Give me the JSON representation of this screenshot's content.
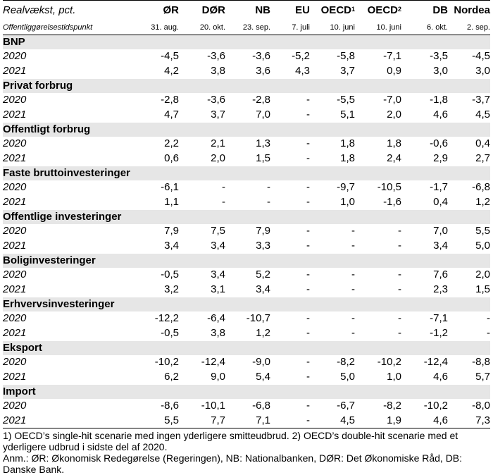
{
  "header": {
    "title": "Realvækst, pct.",
    "subtitle": "Offentliggørelsestidspunkt",
    "columns": [
      {
        "name": "ØR",
        "sup": "",
        "date": "31. aug."
      },
      {
        "name": "DØR",
        "sup": "",
        "date": "20. okt."
      },
      {
        "name": "NB",
        "sup": "",
        "date": "23. sep."
      },
      {
        "name": "EU",
        "sup": "",
        "date": "7. juli"
      },
      {
        "name": "OECD",
        "sup": "1",
        "date": "10. juni"
      },
      {
        "name": "OECD",
        "sup": "2",
        "date": "10. juni"
      },
      {
        "name": "DB",
        "sup": "",
        "date": "6. okt."
      },
      {
        "name": "Nordea",
        "sup": "",
        "date": "2. sep."
      }
    ]
  },
  "sections": [
    {
      "title": "BNP",
      "rows": [
        {
          "year": "2020",
          "values": [
            "-4,5",
            "-3,6",
            "-3,6",
            "-5,2",
            "-5,8",
            "-7,1",
            "-3,5",
            "-4,5"
          ]
        },
        {
          "year": "2021",
          "values": [
            "4,2",
            "3,8",
            "3,6",
            "4,3",
            "3,7",
            "0,9",
            "3,0",
            "3,0"
          ]
        }
      ]
    },
    {
      "title": "Privat forbrug",
      "rows": [
        {
          "year": "2020",
          "values": [
            "-2,8",
            "-3,6",
            "-2,8",
            "-",
            "-5,5",
            "-7,0",
            "-1,8",
            "-3,7"
          ]
        },
        {
          "year": "2021",
          "values": [
            "4,7",
            "3,7",
            "7,0",
            "-",
            "5,1",
            "2,0",
            "4,6",
            "4,5"
          ]
        }
      ]
    },
    {
      "title": "Offentligt forbrug",
      "rows": [
        {
          "year": "2020",
          "values": [
            "2,2",
            "2,1",
            "1,3",
            "-",
            "1,8",
            "1,8",
            "-0,6",
            "0,4"
          ]
        },
        {
          "year": "2021",
          "values": [
            "0,6",
            "2,0",
            "1,5",
            "-",
            "1,8",
            "2,4",
            "2,9",
            "2,7"
          ]
        }
      ]
    },
    {
      "title": "Faste bruttoinvesteringer",
      "rows": [
        {
          "year": "2020",
          "values": [
            "-6,1",
            "-",
            "-",
            "-",
            "-9,7",
            "-10,5",
            "-1,7",
            "-6,8"
          ]
        },
        {
          "year": "2021",
          "values": [
            "1,1",
            "-",
            "-",
            "-",
            "1,0",
            "-1,6",
            "0,4",
            "1,2"
          ]
        }
      ]
    },
    {
      "title": "Offentlige investeringer",
      "rows": [
        {
          "year": "2020",
          "values": [
            "7,9",
            "7,5",
            "7,9",
            "-",
            "-",
            "-",
            "7,0",
            "5,5"
          ]
        },
        {
          "year": "2021",
          "values": [
            "3,4",
            "3,4",
            "3,3",
            "-",
            "-",
            "-",
            "3,4",
            "5,0"
          ]
        }
      ]
    },
    {
      "title": "Boliginvesteringer",
      "rows": [
        {
          "year": "2020",
          "values": [
            "-0,5",
            "3,4",
            "5,2",
            "-",
            "-",
            "-",
            "7,6",
            "2,0"
          ]
        },
        {
          "year": "2021",
          "values": [
            "3,2",
            "3,1",
            "3,4",
            "-",
            "-",
            "-",
            "2,3",
            "1,5"
          ]
        }
      ]
    },
    {
      "title": "Erhvervsinvesteringer",
      "rows": [
        {
          "year": "2020",
          "values": [
            "-12,2",
            "-6,4",
            "-10,7",
            "-",
            "-",
            "-",
            "-7,1",
            "-"
          ]
        },
        {
          "year": "2021",
          "values": [
            "-0,5",
            "3,8",
            "1,2",
            "-",
            "-",
            "-",
            "-1,2",
            "-"
          ]
        }
      ]
    },
    {
      "title": "Eksport",
      "rows": [
        {
          "year": "2020",
          "values": [
            "-10,2",
            "-12,4",
            "-9,0",
            "-",
            "-8,2",
            "-10,2",
            "-12,4",
            "-8,8"
          ]
        },
        {
          "year": "2021",
          "values": [
            "6,2",
            "9,0",
            "5,4",
            "-",
            "5,0",
            "1,0",
            "4,6",
            "5,7"
          ]
        }
      ]
    },
    {
      "title": "Import",
      "rows": [
        {
          "year": "2020",
          "values": [
            "-8,6",
            "-10,1",
            "-6,8",
            "-",
            "-6,7",
            "-8,2",
            "-10,2",
            "-8,0"
          ]
        },
        {
          "year": "2021",
          "values": [
            "5,5",
            "7,7",
            "7,1",
            "-",
            "4,5",
            "1,9",
            "4,6",
            "7,3"
          ]
        }
      ]
    }
  ],
  "notes": {
    "footnote": "1) OECD’s single-hit scenarie med ingen yderligere smitteudbrud. 2) OECD’s double-hit scenarie med et yderligere udbrud i sidste del af 2020.",
    "annotation": "Anm.: ØR: Økonomisk Redegørelse (Regeringen), NB: Nationalbanken, DØR: Det Økonomiske Råd, DB: Danske Bank."
  }
}
